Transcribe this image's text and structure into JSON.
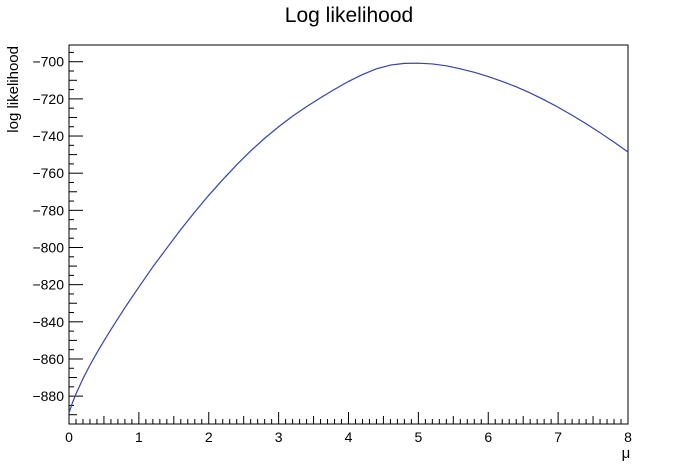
{
  "chart_data": {
    "type": "line",
    "title": "Log likelihood",
    "xlabel": "μ",
    "ylabel": "log likelihood",
    "xlim": [
      0,
      8
    ],
    "ylim": [
      -895,
      -691
    ],
    "x_ticks": [
      0,
      1,
      2,
      3,
      4,
      5,
      6,
      7,
      8
    ],
    "y_ticks": [
      -880,
      -860,
      -840,
      -820,
      -800,
      -780,
      -760,
      -740,
      -720,
      -700
    ],
    "x_tick_labels": [
      "0",
      "1",
      "2",
      "3",
      "4",
      "5",
      "6",
      "7",
      "8"
    ],
    "y_tick_labels": [
      "−880",
      "−860",
      "−840",
      "−820",
      "−800",
      "−780",
      "−760",
      "−740",
      "−720",
      "−700"
    ],
    "grid": false,
    "colors": {
      "line": "#3344aa",
      "axis": "#000000"
    },
    "series": [
      {
        "x": [
          0.0,
          0.05,
          0.1,
          0.2,
          0.3,
          0.4,
          0.5,
          0.6,
          0.8,
          1.0,
          1.2,
          1.4,
          1.6,
          1.8,
          2.0,
          2.2,
          2.4,
          2.6,
          2.8,
          3.0,
          3.2,
          3.4,
          3.6,
          3.8,
          4.0,
          4.2,
          4.4,
          4.6,
          4.8,
          5.0,
          5.2,
          5.4,
          5.6,
          5.8,
          6.0,
          6.2,
          6.4,
          6.6,
          6.8,
          7.0,
          7.2,
          7.4,
          7.6,
          7.8,
          8.0
        ],
        "y": [
          -889,
          -883.5,
          -878.8,
          -870.6,
          -863.3,
          -856.6,
          -850.3,
          -844.2,
          -832.4,
          -821.3,
          -810.4,
          -800.3,
          -790.3,
          -780.9,
          -771.9,
          -763.5,
          -755.5,
          -748.0,
          -741.2,
          -735.0,
          -729.3,
          -724.2,
          -719.4,
          -714.9,
          -710.6,
          -706.9,
          -703.8,
          -701.8,
          -700.9,
          -700.8,
          -701.2,
          -702.2,
          -703.8,
          -705.7,
          -708.0,
          -710.6,
          -713.5,
          -716.8,
          -720.5,
          -724.5,
          -728.8,
          -733.4,
          -738.2,
          -743.3,
          -748.6
        ]
      }
    ]
  }
}
